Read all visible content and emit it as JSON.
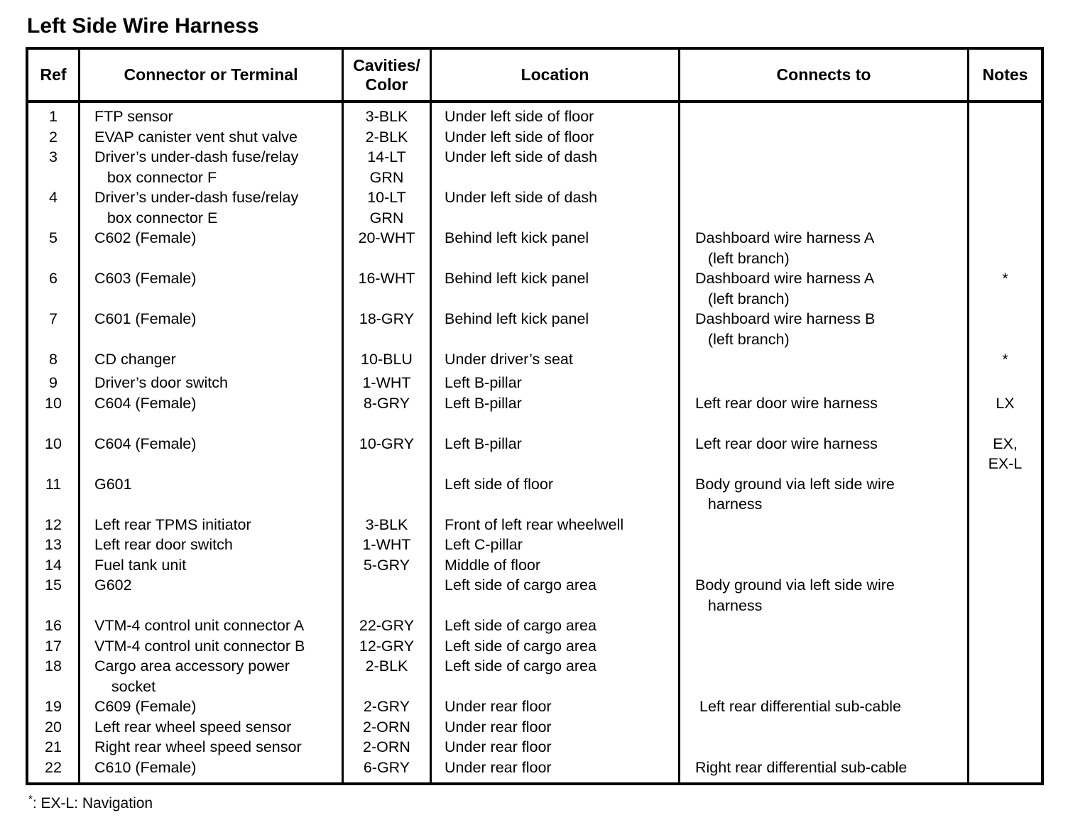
{
  "title": "Left Side Wire Harness",
  "table": {
    "headers": [
      "Ref",
      "Connector or Terminal",
      "Cavities/\nColor",
      "Location",
      "Connects to",
      "Notes"
    ],
    "rows": [
      {
        "ref": "1",
        "connector": "FTP sensor",
        "cavities": "3-BLK",
        "location": "Under left side of floor",
        "connects_to": "",
        "notes": ""
      },
      {
        "ref": "2",
        "connector": "EVAP canister vent shut valve",
        "cavities": "2-BLK",
        "location": "Under left side of floor",
        "connects_to": "",
        "notes": ""
      },
      {
        "ref": "3",
        "connector": "Driver’s under-dash fuse/relay\n   box connector F",
        "cavities": "14-LT\nGRN",
        "location": "Under left side of dash",
        "connects_to": "",
        "notes": ""
      },
      {
        "ref": "4",
        "connector": "Driver’s under-dash fuse/relay\n   box connector E",
        "cavities": "10-LT\nGRN",
        "location": "Under left side of dash",
        "connects_to": "",
        "notes": ""
      },
      {
        "ref": "5",
        "connector": "C602 (Female)",
        "cavities": "20-WHT",
        "location": "Behind left kick panel",
        "connects_to": "Dashboard wire harness A\n   (left branch)",
        "notes": ""
      },
      {
        "ref": "6",
        "connector": "C603 (Female)",
        "cavities": "16-WHT",
        "location": "Behind left kick panel",
        "connects_to": "Dashboard wire harness A\n   (left branch)",
        "notes": "*"
      },
      {
        "ref": "7",
        "connector": "C601 (Female)",
        "cavities": "18-GRY",
        "location": "Behind left kick panel",
        "connects_to": "Dashboard wire harness B\n   (left branch)",
        "notes": ""
      },
      {
        "ref": "8",
        "connector": "CD changer",
        "cavities": "10-BLU",
        "location": "Under driver’s seat",
        "connects_to": "",
        "notes": "*"
      },
      {
        "ref": "9",
        "connector": "Driver’s door switch",
        "cavities": "1-WHT",
        "location": "Left B-pillar",
        "connects_to": "",
        "notes": ""
      },
      {
        "ref": "10",
        "connector": "C604 (Female)",
        "cavities": "8-GRY",
        "location": "Left B-pillar",
        "connects_to": "Left rear door wire harness",
        "notes": "LX"
      },
      {
        "ref": "10",
        "connector": "C604 (Female)",
        "cavities": "10-GRY",
        "location": "Left B-pillar",
        "connects_to": "Left rear door wire harness",
        "notes": "EX,\nEX-L"
      },
      {
        "ref": "11",
        "connector": "G601",
        "cavities": "",
        "location": "Left side of floor",
        "connects_to": "Body ground via left side wire\n   harness",
        "notes": ""
      },
      {
        "ref": "12",
        "connector": "Left rear TPMS initiator",
        "cavities": "3-BLK",
        "location": "Front of left rear wheelwell",
        "connects_to": "",
        "notes": ""
      },
      {
        "ref": "13",
        "connector": "Left rear door switch",
        "cavities": "1-WHT",
        "location": "Left C-pillar",
        "connects_to": "",
        "notes": ""
      },
      {
        "ref": "14",
        "connector": "Fuel tank unit",
        "cavities": "5-GRY",
        "location": "Middle of floor",
        "connects_to": "",
        "notes": ""
      },
      {
        "ref": "15",
        "connector": "G602",
        "cavities": "",
        "location": "Left side of cargo area",
        "connects_to": "Body ground via left side wire\n   harness",
        "notes": ""
      },
      {
        "ref": "16",
        "connector": "VTM-4 control unit connector A",
        "cavities": "22-GRY",
        "location": "Left side of cargo area",
        "connects_to": "",
        "notes": ""
      },
      {
        "ref": "17",
        "connector": "VTM-4 control unit connector B",
        "cavities": "12-GRY",
        "location": "Left side of cargo area",
        "connects_to": "",
        "notes": ""
      },
      {
        "ref": "18",
        "connector": "Cargo area accessory power\n    socket",
        "cavities": "2-BLK",
        "location": "Left side of cargo area",
        "connects_to": "",
        "notes": ""
      },
      {
        "ref": "19",
        "connector": "C609 (Female)",
        "cavities": "2-GRY",
        "location": "Under rear floor",
        "connects_to": " Left rear differential sub-cable",
        "notes": ""
      },
      {
        "ref": "20",
        "connector": "Left rear wheel speed sensor",
        "cavities": "2-ORN",
        "location": "Under rear floor",
        "connects_to": "",
        "notes": ""
      },
      {
        "ref": "21",
        "connector": "Right rear wheel speed sensor",
        "cavities": "2-ORN",
        "location": "Under rear floor",
        "connects_to": "",
        "notes": ""
      },
      {
        "ref": "22",
        "connector": "C610 (Female)",
        "cavities": "6-GRY",
        "location": "Under rear floor",
        "connects_to": "Right rear differential sub-cable",
        "notes": ""
      }
    ]
  },
  "footnote": {
    "symbol": "*",
    "text": ": EX-L: Navigation"
  }
}
